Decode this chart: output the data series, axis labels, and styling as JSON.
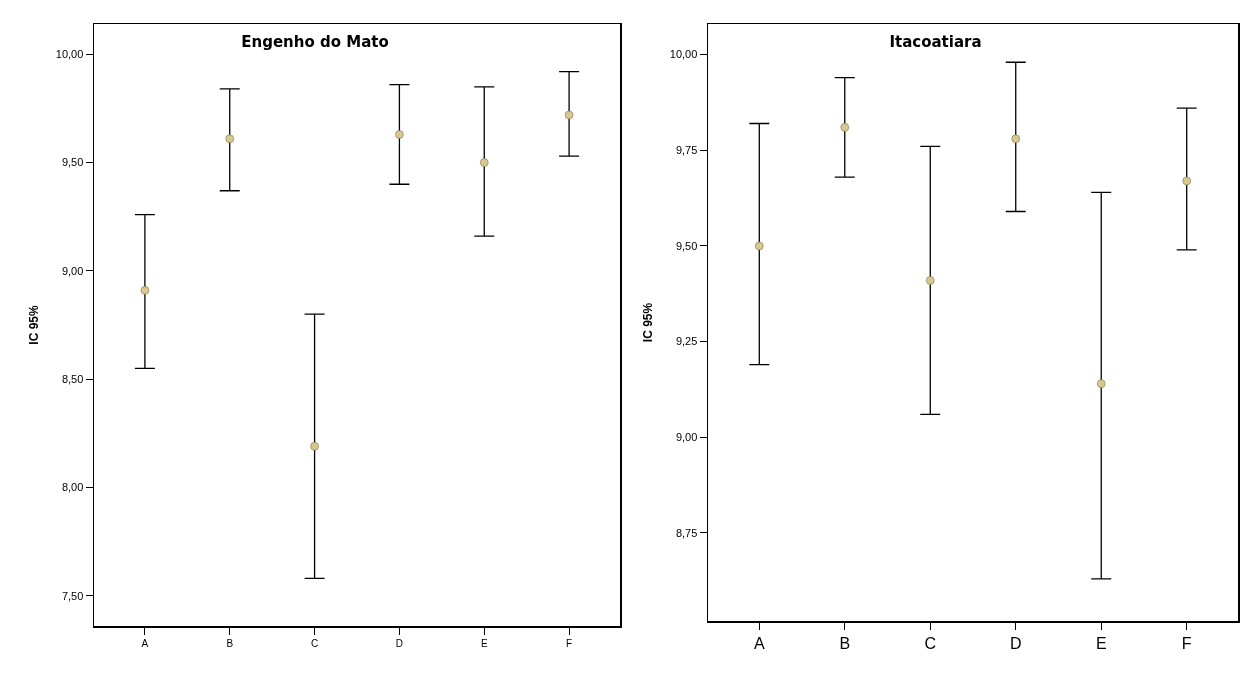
{
  "chart_data": [
    {
      "type": "scatter",
      "title": "Engenho do Mato",
      "ylabel": "IC 95%",
      "categories": [
        "A",
        "B",
        "C",
        "D",
        "E",
        "F"
      ],
      "series": [
        {
          "color": "#d8c890",
          "values": [
            8.91,
            9.61,
            8.19,
            9.63,
            9.5,
            9.72
          ],
          "errors": [
            [
              8.55,
              9.26
            ],
            [
              9.37,
              9.84
            ],
            [
              7.58,
              8.8
            ],
            [
              9.4,
              9.86
            ],
            [
              9.16,
              9.85
            ],
            [
              9.53,
              9.92
            ]
          ]
        }
      ],
      "ylim": [
        7.36,
        10.14
      ],
      "yticks": [
        {
          "value": 7.5,
          "label": "7,50"
        },
        {
          "value": 8,
          "label": "8,00"
        },
        {
          "value": 8.5,
          "label": "8,50"
        },
        {
          "value": 9,
          "label": "9,00"
        },
        {
          "value": 9.5,
          "label": "9,50"
        },
        {
          "value": 10,
          "label": "10,00"
        }
      ],
      "grid": false,
      "marker": "circle"
    },
    {
      "type": "scatter",
      "title": "Itacoatiara",
      "ylabel": "IC 95%",
      "categories": [
        "A",
        "B",
        "C",
        "D",
        "E",
        "F"
      ],
      "series": [
        {
          "color": "#d8c890",
          "values": [
            9.5,
            9.81,
            9.41,
            9.78,
            9.14,
            9.67
          ],
          "errors": [
            [
              9.19,
              9.82
            ],
            [
              9.68,
              9.94
            ],
            [
              9.06,
              9.76
            ],
            [
              9.59,
              9.98
            ],
            [
              8.63,
              9.64
            ],
            [
              9.49,
              9.86
            ]
          ]
        }
      ],
      "ylim": [
        8.52,
        10.08
      ],
      "yticks": [
        {
          "value": 8.75,
          "label": "8,75"
        },
        {
          "value": 9,
          "label": "9,00"
        },
        {
          "value": 9.25,
          "label": "9,25"
        },
        {
          "value": 9.5,
          "label": "9,50"
        },
        {
          "value": 9.75,
          "label": "9,75"
        },
        {
          "value": 10,
          "label": "10,00"
        }
      ],
      "grid": false,
      "marker": "circle"
    }
  ]
}
